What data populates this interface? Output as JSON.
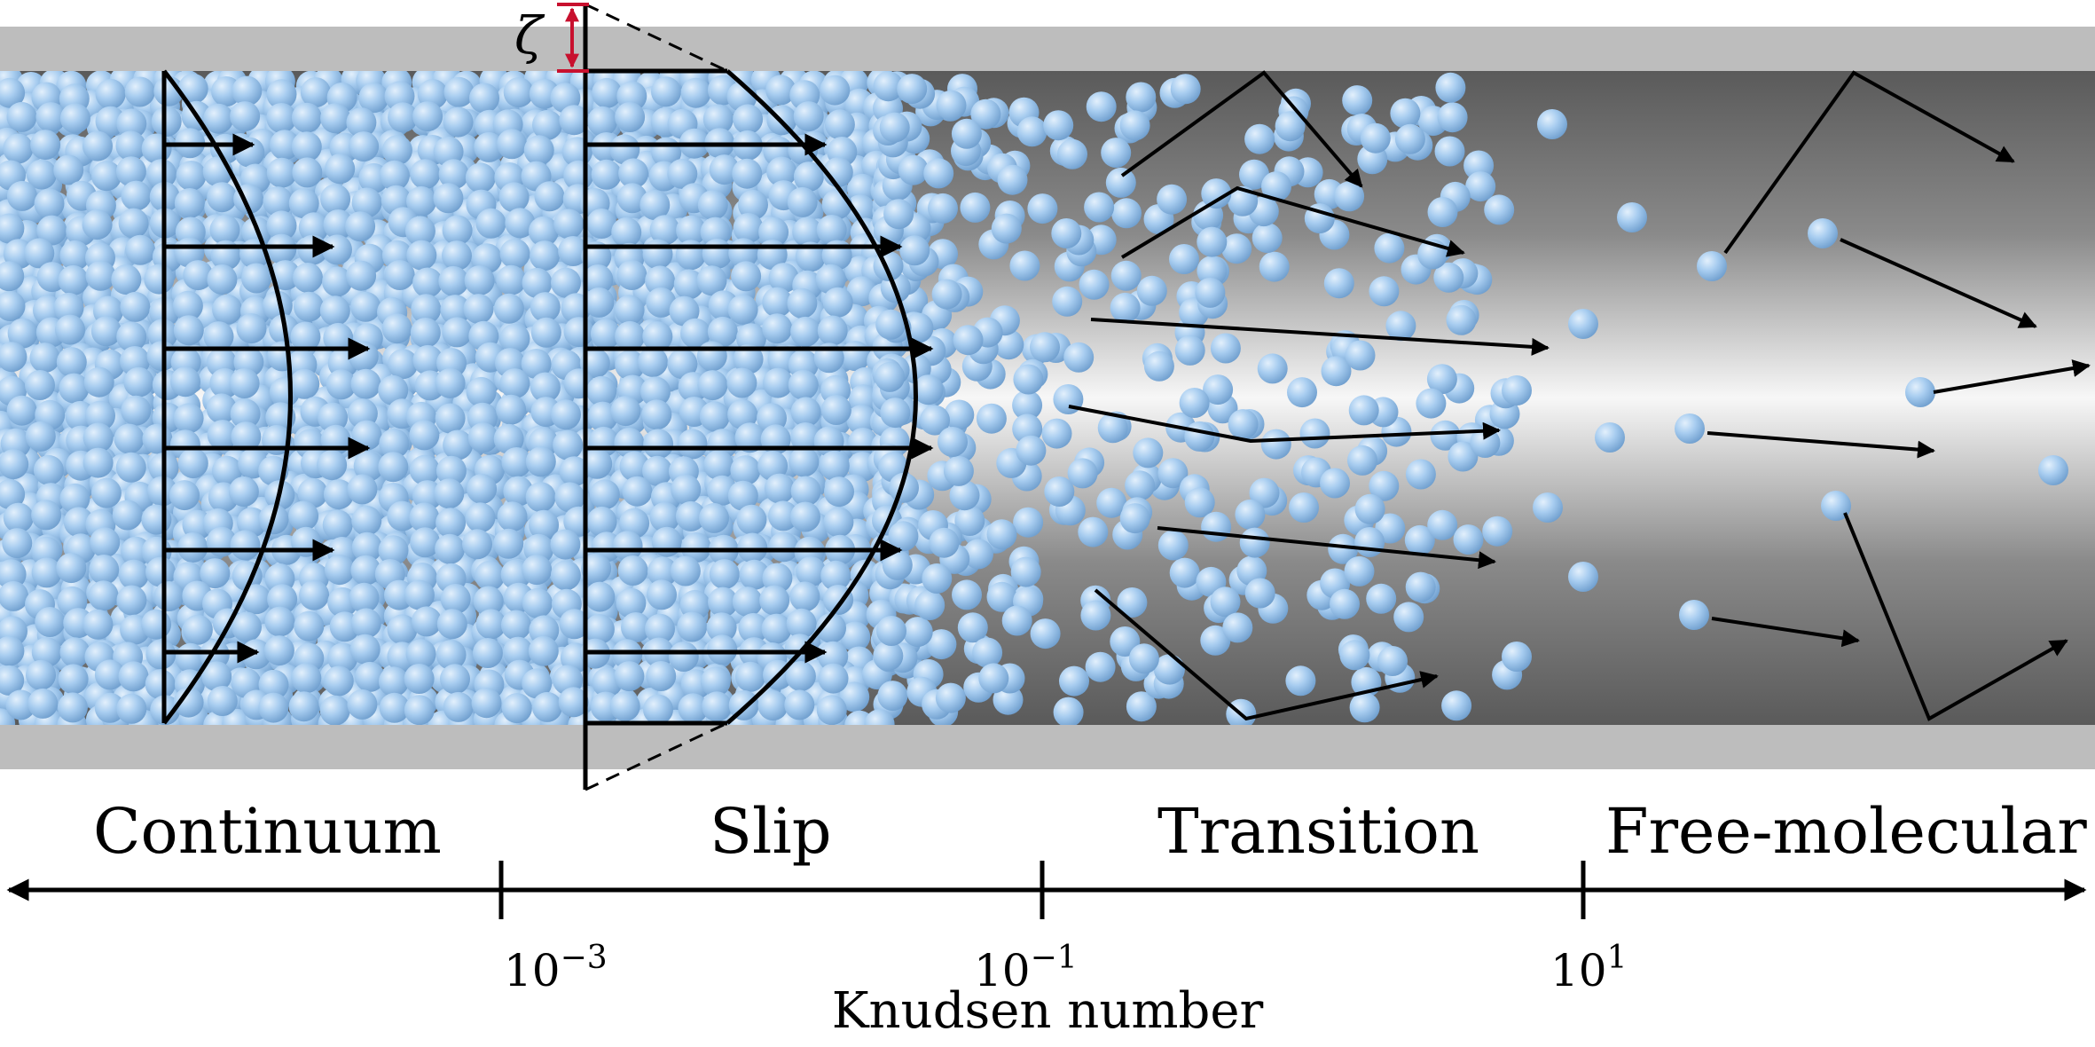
{
  "regimes": [
    {
      "label": "Continuum"
    },
    {
      "label": "Slip"
    },
    {
      "label": "Transition"
    },
    {
      "label": "Free-molecular"
    }
  ],
  "axis": {
    "title": "Knudsen number",
    "ticks": [
      {
        "base": "10",
        "exp": "−3"
      },
      {
        "base": "10",
        "exp": "−1"
      },
      {
        "base": "10",
        "exp": "1"
      }
    ]
  },
  "slip_length_symbol": "ζ",
  "colors": {
    "molecule": "#9ec5ec",
    "molecule_highlight": "#d9ebfb",
    "molecule_shadow": "#6f9fcf",
    "wall": "#bdbdbd",
    "channel_dark": "#6e6e6e",
    "channel_light": "#f4f4f4",
    "arrow": "#000000",
    "slip_marker": "#c8102e"
  }
}
